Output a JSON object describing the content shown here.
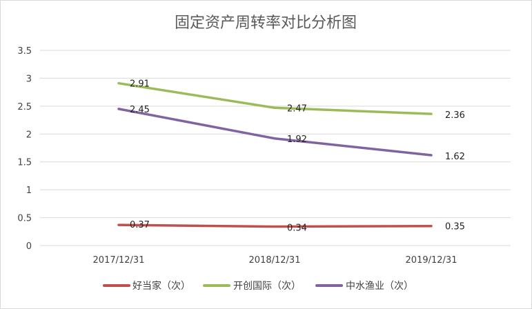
{
  "chart_data": {
    "type": "line",
    "title": "固定资产周转率对比分析图",
    "xlabel": "",
    "ylabel": "",
    "categories": [
      "2017/12/31",
      "2018/12/31",
      "2019/12/31"
    ],
    "ylim": [
      0,
      3.5
    ],
    "yticks": [
      "0",
      "0.5",
      "1",
      "1.5",
      "2",
      "2.5",
      "3",
      "3.5"
    ],
    "grid": true,
    "legend_position": "bottom",
    "series": [
      {
        "name": "好当家（次）",
        "color": "#c0504d",
        "values": [
          0.37,
          0.34,
          0.35
        ],
        "labels": [
          "0.37",
          "0.34",
          "0.35"
        ]
      },
      {
        "name": "开创国际（次）",
        "color": "#9bbb59",
        "values": [
          2.91,
          2.47,
          2.36
        ],
        "labels": [
          "2.91",
          "2.47",
          "2.36"
        ]
      },
      {
        "name": "中水渔业（次）",
        "color": "#8064a2",
        "values": [
          2.45,
          1.92,
          1.62
        ],
        "labels": [
          "2.45",
          "1.92",
          "1.62"
        ]
      }
    ]
  }
}
